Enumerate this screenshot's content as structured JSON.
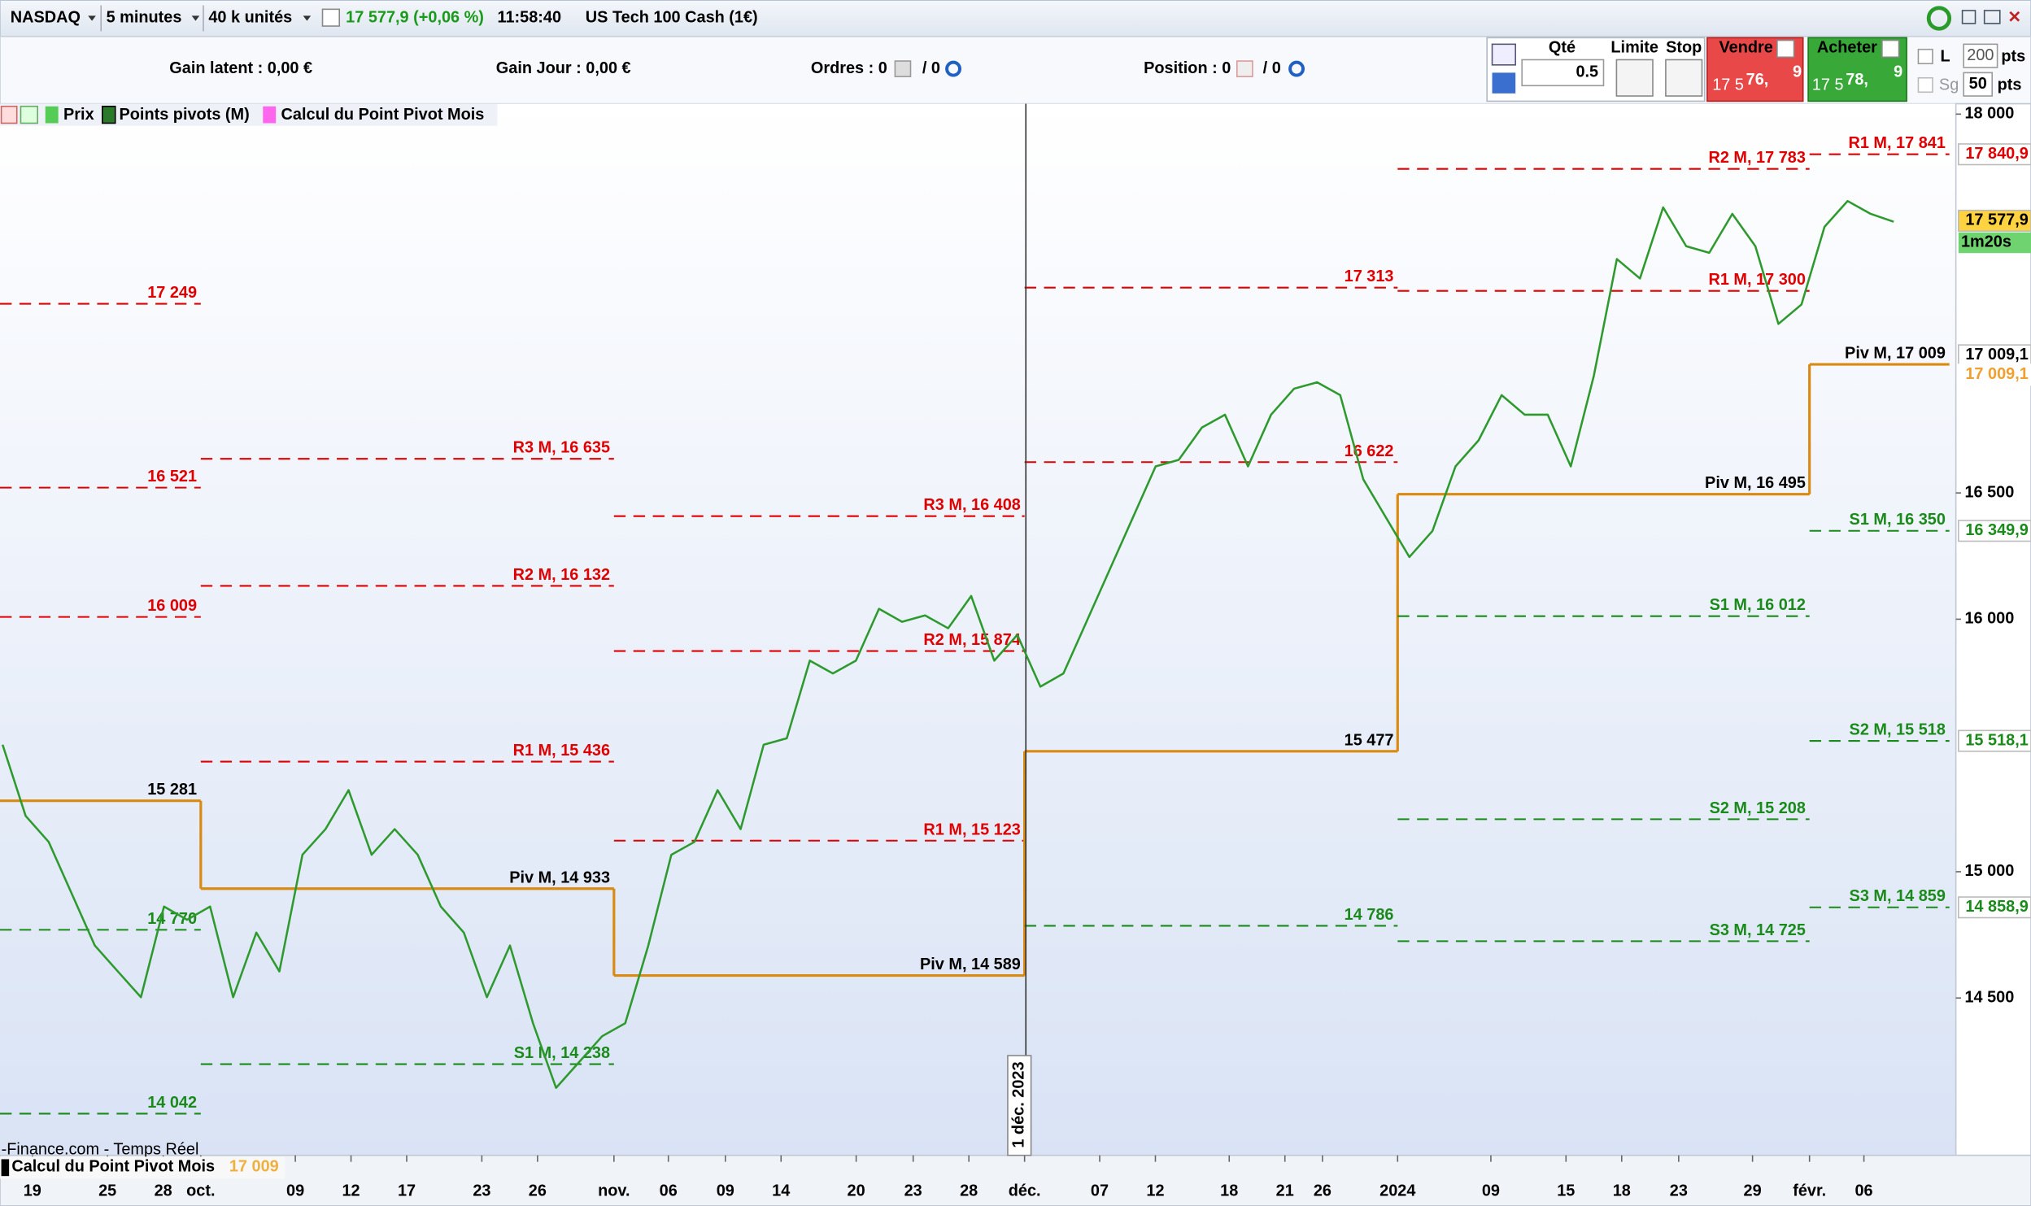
{
  "toolbar": {
    "instrument": "NASDAQ",
    "timeframe": "5 minutes",
    "units": "40 k unités",
    "quote": "17 577,9 (+0,06 %)",
    "time": "11:58:40",
    "name": "US Tech 100 Cash (1€)"
  },
  "account": {
    "gain_latent": "Gain latent : 0,00 €",
    "gain_jour": "Gain Jour : 0,00 €",
    "ordres": "Ordres : 0",
    "ordres_total": "/ 0",
    "position": "Position : 0",
    "position_total": "/ 0"
  },
  "order_panel": {
    "qty_label": "Qté",
    "qty": "0.5",
    "limit": "Limite",
    "stop": "Stop",
    "sell": {
      "label": "Vendre",
      "prefix": "17 5",
      "main": "76,",
      "suffix": "9"
    },
    "buy": {
      "label": "Acheter",
      "prefix": "17 5",
      "main": "78,",
      "suffix": "9"
    },
    "l_label": "L",
    "l_value": "200",
    "l_unit": "pts",
    "sg_label": "Sg",
    "sg_value": "50",
    "sg_unit": "pts"
  },
  "chart": {
    "type": "line",
    "legend": [
      "Prix",
      "Points pivots (M)",
      "Calcul du Point Pivot Mois"
    ],
    "source": "-Finance.com - Temps Réel",
    "bottom_legend": {
      "label": "Calcul du Point Pivot Mois",
      "value": "17 009"
    },
    "date_marker": "1 déc. 2023",
    "ylim": [
      13877,
      18041
    ],
    "yticks": [
      {
        "value": 14500,
        "label": "14 500"
      },
      {
        "value": 15000,
        "label": "15 000"
      },
      {
        "value": 16000,
        "label": "16 000"
      },
      {
        "value": 16500,
        "label": "16 500"
      },
      {
        "value": 18000,
        "label": "18 000"
      }
    ],
    "xticks": [
      "19",
      "25",
      "28",
      "oct.",
      "09",
      "12",
      "17",
      "23",
      "26",
      "nov.",
      "06",
      "09",
      "14",
      "20",
      "23",
      "28",
      "déc.",
      "07",
      "12",
      "18",
      "21",
      "26",
      "2024",
      "09",
      "15",
      "18",
      "23",
      "29",
      "févr.",
      "06"
    ],
    "price": {
      "color": "#2e9a2e",
      "values": [
        15503,
        15221,
        15118,
        14913,
        14708,
        14605,
        14503,
        14862,
        14810,
        14862,
        14503,
        14759,
        14605,
        15067,
        15169,
        15323,
        15067,
        15169,
        15067,
        14862,
        14759,
        14503,
        14708,
        14400,
        14144,
        14246,
        14349,
        14400,
        14708,
        15067,
        15118,
        15323,
        15169,
        15503,
        15528,
        15836,
        15785,
        15836,
        16041,
        15990,
        16015,
        15964,
        16092,
        15836,
        15938,
        15733,
        15785,
        15990,
        16195,
        16400,
        16605,
        16631,
        16759,
        16810,
        16605,
        16810,
        16913,
        16938,
        16887,
        16554,
        16400,
        16246,
        16349,
        16605,
        16708,
        16887,
        16810,
        16810,
        16605,
        16964,
        17426,
        17349,
        17631,
        17477,
        17451,
        17605,
        17477,
        17169,
        17246,
        17554,
        17656,
        17605,
        17574
      ]
    },
    "months": [
      {
        "levels": [
          {
            "label": "17 249",
            "value": 17249,
            "color": "#e00000",
            "line": "dashed",
            "line_color": "#e00000"
          },
          {
            "label": "16 521",
            "value": 16521,
            "color": "#e00000",
            "line": "dashed",
            "line_color": "#e00000"
          },
          {
            "label": "16 009",
            "value": 16009,
            "color": "#e00000",
            "line": "dashed",
            "line_color": "#e00000"
          },
          {
            "label": "15 281",
            "value": 15281,
            "color": "#000000",
            "line": "solid",
            "line_color": "#d98a10"
          },
          {
            "label": "14 770",
            "value": 14770,
            "color": "#1a8a1a",
            "line": "dashed",
            "line_color": "#1a8a1a"
          },
          {
            "label": "14 042",
            "value": 14042,
            "color": "#1a8a1a",
            "line": "dashed",
            "line_color": "#1a8a1a"
          }
        ]
      },
      {
        "levels": [
          {
            "label": "R3 M, 16 635",
            "value": 16635,
            "color": "#e00000",
            "line": "dashed",
            "line_color": "#e00000"
          },
          {
            "label": "R2 M, 16 132",
            "value": 16132,
            "color": "#e00000",
            "line": "dashed",
            "line_color": "#e00000"
          },
          {
            "label": "R1 M, 15 436",
            "value": 15436,
            "color": "#e00000",
            "line": "dashed",
            "line_color": "#e00000"
          },
          {
            "label": "Piv M, 14 933",
            "value": 14933,
            "color": "#000000",
            "line": "solid",
            "line_color": "#d98a10"
          },
          {
            "label": "S1 M, 14 238",
            "value": 14238,
            "color": "#1a8a1a",
            "line": "dashed",
            "line_color": "#1a8a1a"
          }
        ]
      },
      {
        "levels": [
          {
            "label": "R3 M, 16 408",
            "value": 16408,
            "color": "#e00000",
            "line": "dashed",
            "line_color": "#e00000"
          },
          {
            "label": "R2 M, 15 874",
            "value": 15874,
            "color": "#e00000",
            "line": "dashed",
            "line_color": "#e00000"
          },
          {
            "label": "R1 M, 15 123",
            "value": 15123,
            "color": "#e00000",
            "line": "dashed",
            "line_color": "#e00000"
          },
          {
            "label": "Piv M, 14 589",
            "value": 14589,
            "color": "#000000",
            "line": "solid",
            "line_color": "#d98a10"
          }
        ]
      },
      {
        "levels": [
          {
            "label": "17 313",
            "value": 17313,
            "color": "#e00000",
            "line": "dashed",
            "line_color": "#e00000"
          },
          {
            "label": "16 622",
            "value": 16622,
            "color": "#e00000",
            "line": "dashed",
            "line_color": "#e00000"
          },
          {
            "label": "15 477",
            "value": 15477,
            "color": "#000000",
            "line": "solid",
            "line_color": "#d98a10"
          },
          {
            "label": "14 786",
            "value": 14786,
            "color": "#1a8a1a",
            "line": "dashed",
            "line_color": "#1a8a1a"
          }
        ]
      },
      {
        "levels": [
          {
            "label": "R2 M, 17 783",
            "value": 17783,
            "color": "#e00000",
            "line": "dashed",
            "line_color": "#e00000"
          },
          {
            "label": "R1 M, 17 300",
            "value": 17300,
            "color": "#e00000",
            "line": "dashed",
            "line_color": "#e00000"
          },
          {
            "label": "Piv M, 16 495",
            "value": 16495,
            "color": "#000000",
            "line": "solid",
            "line_color": "#d98a10"
          },
          {
            "label": "S1 M, 16 012",
            "value": 16012,
            "color": "#1a8a1a",
            "line": "dashed",
            "line_color": "#1a8a1a"
          },
          {
            "label": "S2 M, 15 208",
            "value": 15208,
            "color": "#1a8a1a",
            "line": "dashed",
            "line_color": "#1a8a1a"
          },
          {
            "label": "S3 M, 14 725",
            "value": 14725,
            "color": "#1a8a1a",
            "line": "dashed",
            "line_color": "#1a8a1a"
          }
        ]
      },
      {
        "levels": [
          {
            "label": "R1 M, 17 841",
            "value": 17841,
            "color": "#e00000",
            "line": "dashed",
            "line_color": "#e00000"
          },
          {
            "label": "Piv M, 17 009",
            "value": 17009,
            "color": "#000000",
            "line": "solid",
            "line_color": "#d98a10"
          },
          {
            "label": "S1 M, 16 350",
            "value": 16350,
            "color": "#1a8a1a",
            "line": "dashed",
            "line_color": "#1a8a1a"
          },
          {
            "label": "S2 M, 15 518",
            "value": 15518,
            "color": "#1a8a1a",
            "line": "dashed",
            "line_color": "#1a8a1a"
          },
          {
            "label": "S3 M, 14 859",
            "value": 14859,
            "color": "#1a8a1a",
            "line": "dashed",
            "line_color": "#1a8a1a"
          }
        ]
      }
    ],
    "price_tags": [
      {
        "label": "17 840,9",
        "value": 17840.9,
        "color": "#e00000",
        "bg": "#ffffff"
      },
      {
        "label": "17 577,9",
        "value": 17577.9,
        "color": "#000000",
        "bg": "#ffd23f"
      },
      {
        "label": "17 009,1",
        "value": 17009.1,
        "color": "#000000",
        "bg": "#ffffff"
      },
      {
        "label": "17 009,1",
        "value": 17009.1,
        "color": "#f0a030",
        "bg": "#ffffff"
      },
      {
        "label": "16 349,9",
        "value": 16349.9,
        "color": "#1a8a1a",
        "bg": "#ffffff"
      },
      {
        "label": "15 518,1",
        "value": 15518.1,
        "color": "#1a8a1a",
        "bg": "#ffffff"
      },
      {
        "label": "14 858,9",
        "value": 14858.9,
        "color": "#1a8a1a",
        "bg": "#ffffff"
      }
    ],
    "timer": "1m20s"
  }
}
